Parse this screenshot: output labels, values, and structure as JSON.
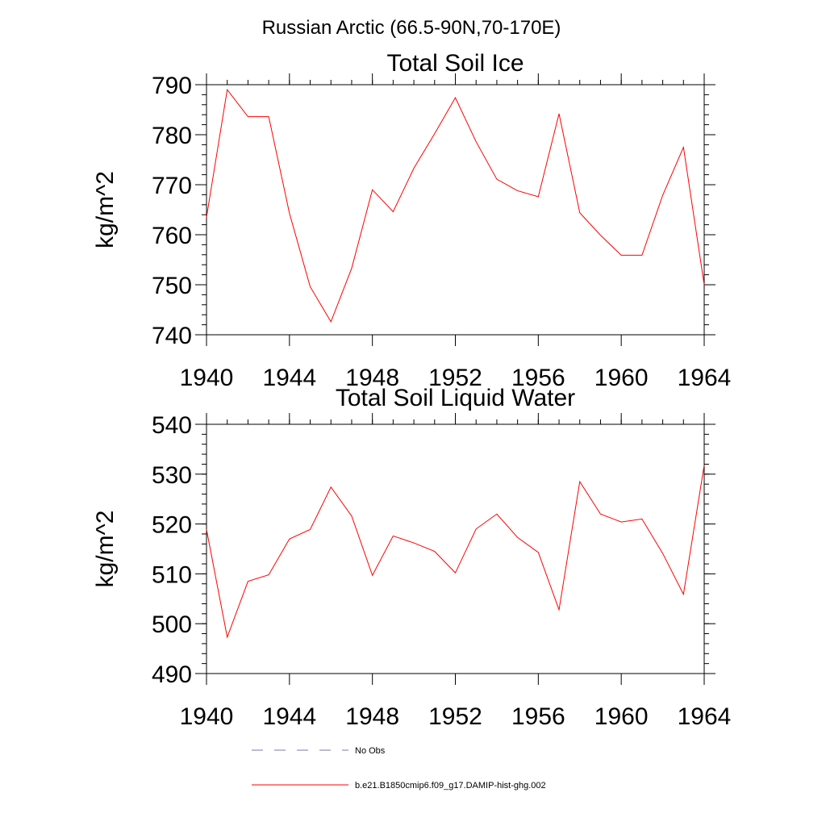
{
  "figure_title": "Russian Arctic (66.5-90N,70-170E)",
  "chart_data": [
    {
      "type": "line",
      "title": "Total Soil Ice",
      "xlabel": "",
      "ylabel": "kg/m^2",
      "xlim": [
        1940,
        1964
      ],
      "ylim": [
        740,
        790
      ],
      "xticks": [
        1940,
        1944,
        1948,
        1952,
        1956,
        1960,
        1964
      ],
      "xtick_labels": [
        "1940",
        "1944",
        "1948",
        "1952",
        "1956",
        "1960",
        "1964"
      ],
      "yticks": [
        740,
        750,
        760,
        770,
        780,
        790
      ],
      "ytick_labels": [
        "740",
        "750",
        "760",
        "770",
        "780",
        "790"
      ],
      "grid": false,
      "series": [
        {
          "name": "b.e21.B1850cmip6.f09_g17.DAMIP-hist-ghg.002",
          "color": "#ff0000",
          "x": [
            1940,
            1941,
            1942,
            1943,
            1944,
            1945,
            1946,
            1947,
            1948,
            1949,
            1950,
            1951,
            1952,
            1953,
            1954,
            1955,
            1956,
            1957,
            1958,
            1959,
            1960,
            1961,
            1962,
            1963,
            1964
          ],
          "values": [
            763.5,
            789.0,
            783.6,
            783.6,
            764.3,
            749.6,
            742.6,
            753.3,
            769.0,
            764.6,
            773.3,
            780.2,
            787.4,
            778.6,
            771.1,
            768.8,
            767.6,
            784.2,
            764.4,
            759.9,
            755.9,
            755.9,
            767.9,
            777.5,
            750.0
          ]
        }
      ]
    },
    {
      "type": "line",
      "title": "Total Soil Liquid Water",
      "xlabel": "",
      "ylabel": "kg/m^2",
      "xlim": [
        1940,
        1964
      ],
      "ylim": [
        490,
        540
      ],
      "xticks": [
        1940,
        1944,
        1948,
        1952,
        1956,
        1960,
        1964
      ],
      "xtick_labels": [
        "1940",
        "1944",
        "1948",
        "1952",
        "1956",
        "1960",
        "1964"
      ],
      "yticks": [
        490,
        500,
        510,
        520,
        530,
        540
      ],
      "ytick_labels": [
        "490",
        "500",
        "510",
        "520",
        "530",
        "540"
      ],
      "grid": false,
      "series": [
        {
          "name": "b.e21.B1850cmip6.f09_g17.DAMIP-hist-ghg.002",
          "color": "#ff0000",
          "x": [
            1940,
            1941,
            1942,
            1943,
            1944,
            1945,
            1946,
            1947,
            1948,
            1949,
            1950,
            1951,
            1952,
            1953,
            1954,
            1955,
            1956,
            1957,
            1958,
            1959,
            1960,
            1961,
            1962,
            1963,
            1964
          ],
          "values": [
            518.9,
            497.3,
            508.5,
            509.8,
            517.0,
            518.9,
            527.4,
            521.6,
            509.7,
            517.6,
            516.2,
            514.5,
            510.2,
            519.0,
            522.0,
            517.3,
            514.3,
            502.8,
            528.5,
            522.0,
            520.4,
            521.0,
            514.1,
            505.9,
            531.8
          ]
        }
      ]
    }
  ],
  "legend": {
    "placement": "bottom",
    "items": [
      {
        "label": "No Obs",
        "color": "#7a7aa8",
        "dash": true
      },
      {
        "label": "b.e21.B1850cmip6.f09_g17.DAMIP-hist-ghg.002",
        "color": "#ff0000",
        "dash": false
      }
    ]
  }
}
